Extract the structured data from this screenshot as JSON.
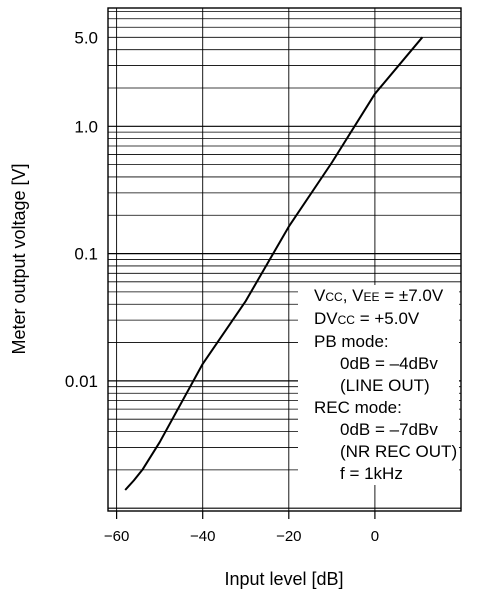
{
  "chart_data": {
    "type": "line",
    "xlabel": "Input level [dB]",
    "ylabel": "Meter output voltage [V]",
    "xlim": [
      -62,
      20
    ],
    "ylim": [
      0.00095,
      8.5
    ],
    "yscale": "log",
    "grid": true,
    "x_ticks": [
      {
        "value": -60,
        "label": "−60"
      },
      {
        "value": -40,
        "label": "−40"
      },
      {
        "value": -20,
        "label": "−20"
      },
      {
        "value": 0,
        "label": "0"
      }
    ],
    "y_ticks": [
      {
        "value": 5.0,
        "label": "5.0"
      },
      {
        "value": 1.0,
        "label": "1.0"
      },
      {
        "value": 0.1,
        "label": "0.1"
      },
      {
        "value": 0.01,
        "label": "0.01"
      }
    ],
    "series": [
      {
        "name": "",
        "x": [
          -58,
          -56,
          -54,
          -50,
          -40,
          -30,
          -20,
          -10,
          0,
          11
        ],
        "y": [
          0.00139,
          0.00165,
          0.002,
          0.0033,
          0.0136,
          0.0425,
          0.163,
          0.52,
          1.8,
          5.0
        ]
      }
    ],
    "conditions": {
      "line1_a": "V",
      "line1_a_sub": "CC",
      "line1_b": ", V",
      "line1_b_sub": "EE",
      "line1_c": " = ±7.0V",
      "line2_a": "DV",
      "line2_a_sub": "CC",
      "line2_b": " = +5.0V",
      "pb_mode": "PB mode:",
      "pb_level": "0dB = –4dBv",
      "pb_out": "(LINE OUT)",
      "rec_mode": "REC mode:",
      "rec_level": "0dB = –7dBv",
      "rec_out": "(NR REC OUT)",
      "freq": "f = 1kHz"
    }
  }
}
